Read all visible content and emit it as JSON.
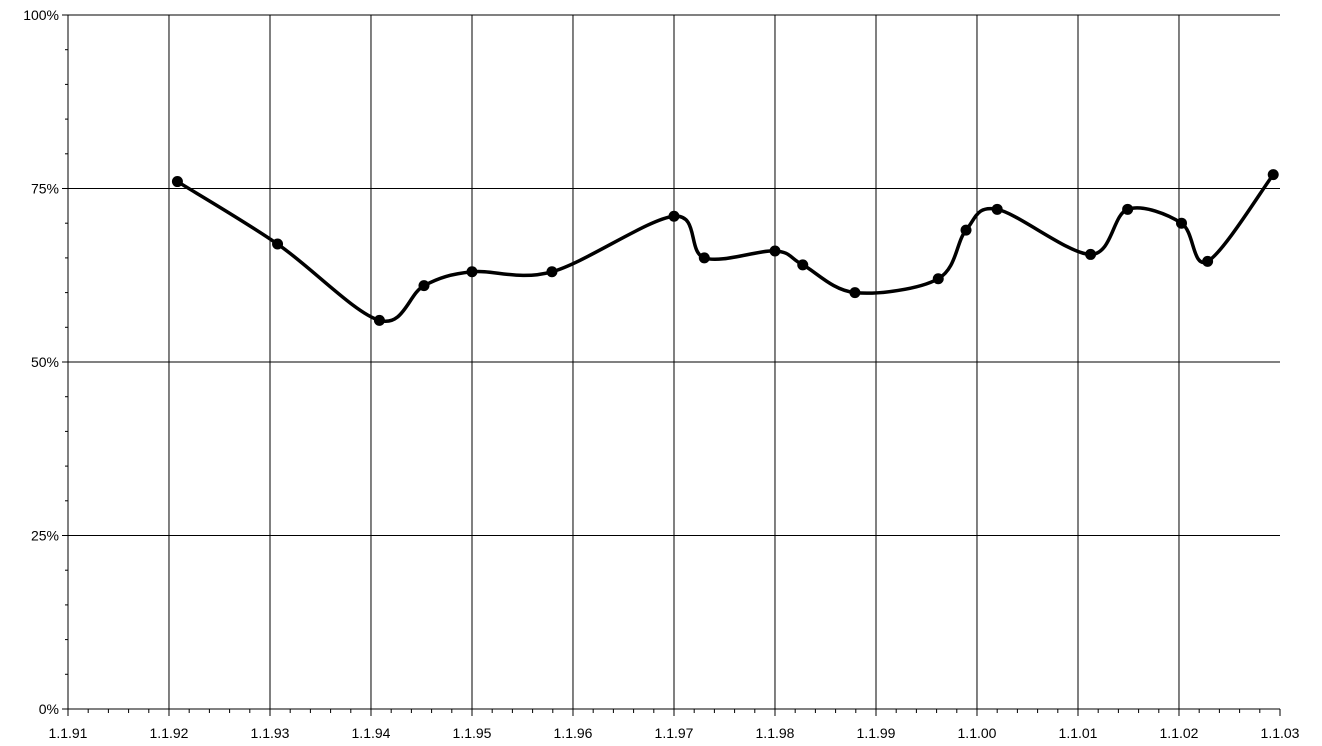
{
  "chart_data": {
    "type": "line",
    "title": "",
    "xlabel": "",
    "ylabel": "",
    "x_axis": {
      "type": "date",
      "min": "1910-01-01",
      "max": "2030-01-01",
      "major_ticks": [
        "1910-01-01",
        "1920-01-01",
        "1930-01-01",
        "1940-01-01",
        "1950-01-01",
        "1960-01-01",
        "1970-01-01",
        "1980-01-01",
        "1990-01-01",
        "2000-01-01",
        "2010-01-01",
        "2020-01-01",
        "2030-01-01"
      ],
      "tick_labels": [
        "1.1.91",
        "1.1.92",
        "1.1.93",
        "1.1.94",
        "1.1.95",
        "1.1.96",
        "1.1.97",
        "1.1.98",
        "1.1.99",
        "1.1.00",
        "1.1.01",
        "1.1.02",
        "1.1.03"
      ],
      "minor_ticks_per_major": 4
    },
    "y_axis": {
      "min": 0,
      "max": 100,
      "major_ticks": [
        0,
        25,
        50,
        75,
        100
      ],
      "tick_labels": [
        "0%",
        "25%",
        "50%",
        "75%",
        "100%"
      ],
      "minor_ticks_per_major": 5
    },
    "grid": {
      "vertical": true,
      "horizontal": true
    },
    "series": [
      {
        "color": "#000000",
        "smooth": true,
        "marker": "circle",
        "points": [
          {
            "x": "1920-11-01",
            "y": 76
          },
          {
            "x": "1930-10-01",
            "y": 67
          },
          {
            "x": "1940-11-01",
            "y": 56
          },
          {
            "x": "1945-04-01",
            "y": 61
          },
          {
            "x": "1950-01-01",
            "y": 63
          },
          {
            "x": "1957-12-01",
            "y": 63
          },
          {
            "x": "1970-01-01",
            "y": 71
          },
          {
            "x": "1973-01-01",
            "y": 65
          },
          {
            "x": "1980-01-01",
            "y": 66
          },
          {
            "x": "1982-10-01",
            "y": 64
          },
          {
            "x": "1987-12-01",
            "y": 60
          },
          {
            "x": "1996-03-01",
            "y": 62
          },
          {
            "x": "1998-12-01",
            "y": 69
          },
          {
            "x": "2002-01-01",
            "y": 72
          },
          {
            "x": "2011-04-01",
            "y": 65.5
          },
          {
            "x": "2014-12-01",
            "y": 72
          },
          {
            "x": "2020-04-01",
            "y": 70
          },
          {
            "x": "2022-11-01",
            "y": 64.5
          },
          {
            "x": "2029-05-01",
            "y": 77
          }
        ]
      }
    ]
  }
}
